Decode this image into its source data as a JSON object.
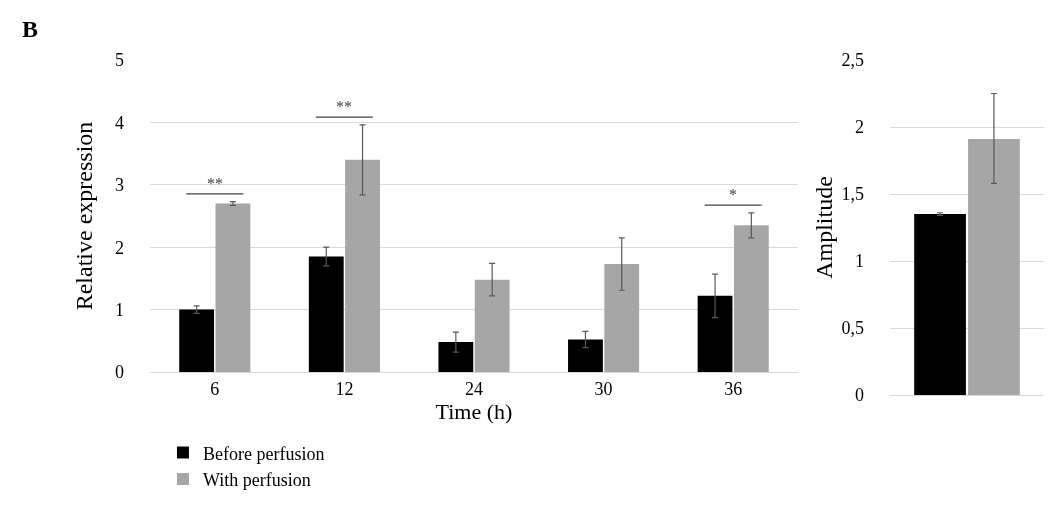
{
  "chart_data": [
    {
      "type": "bar",
      "title": "B",
      "xlabel": "Time (h)",
      "ylabel": "Relative expression",
      "categories": [
        "6",
        "12",
        "24",
        "30",
        "36"
      ],
      "series": [
        {
          "name": "Before perfusion",
          "color": "#000000",
          "values": [
            1.0,
            1.85,
            0.48,
            0.52,
            1.22
          ],
          "errors": [
            0.06,
            0.15,
            0.16,
            0.13,
            0.35
          ]
        },
        {
          "name": "With perfusion",
          "color": "#a6a6a6",
          "values": [
            2.7,
            3.4,
            1.48,
            1.73,
            2.35
          ],
          "errors": [
            0.03,
            0.56,
            0.26,
            0.42,
            0.2
          ]
        }
      ],
      "ylim": [
        0,
        5
      ],
      "yticks": [
        0,
        1,
        2,
        3,
        4,
        5
      ],
      "grid": "y",
      "legend": "bottom",
      "annotations": [
        "**",
        "**",
        "*"
      ]
    },
    {
      "type": "bar",
      "ylabel": "Amplitude",
      "categories": [
        null
      ],
      "series": [
        {
          "color": "#000000",
          "values": [
            1.35
          ],
          "errors": [
            0.01
          ]
        },
        {
          "color": "#a6a6a6",
          "values": [
            1.91
          ],
          "errors": [
            [
              1.58,
              2.25
            ]
          ]
        }
      ],
      "ylim": [
        0,
        2.5
      ],
      "yticks": [
        0,
        {
          "value": 0.5,
          "label": "0,5"
        },
        1,
        {
          "value": 1.5,
          "label": "1,5"
        },
        2,
        {
          "value": 2.5,
          "label": "2,5"
        }
      ],
      "grid": "y",
      "legend": false
    }
  ]
}
